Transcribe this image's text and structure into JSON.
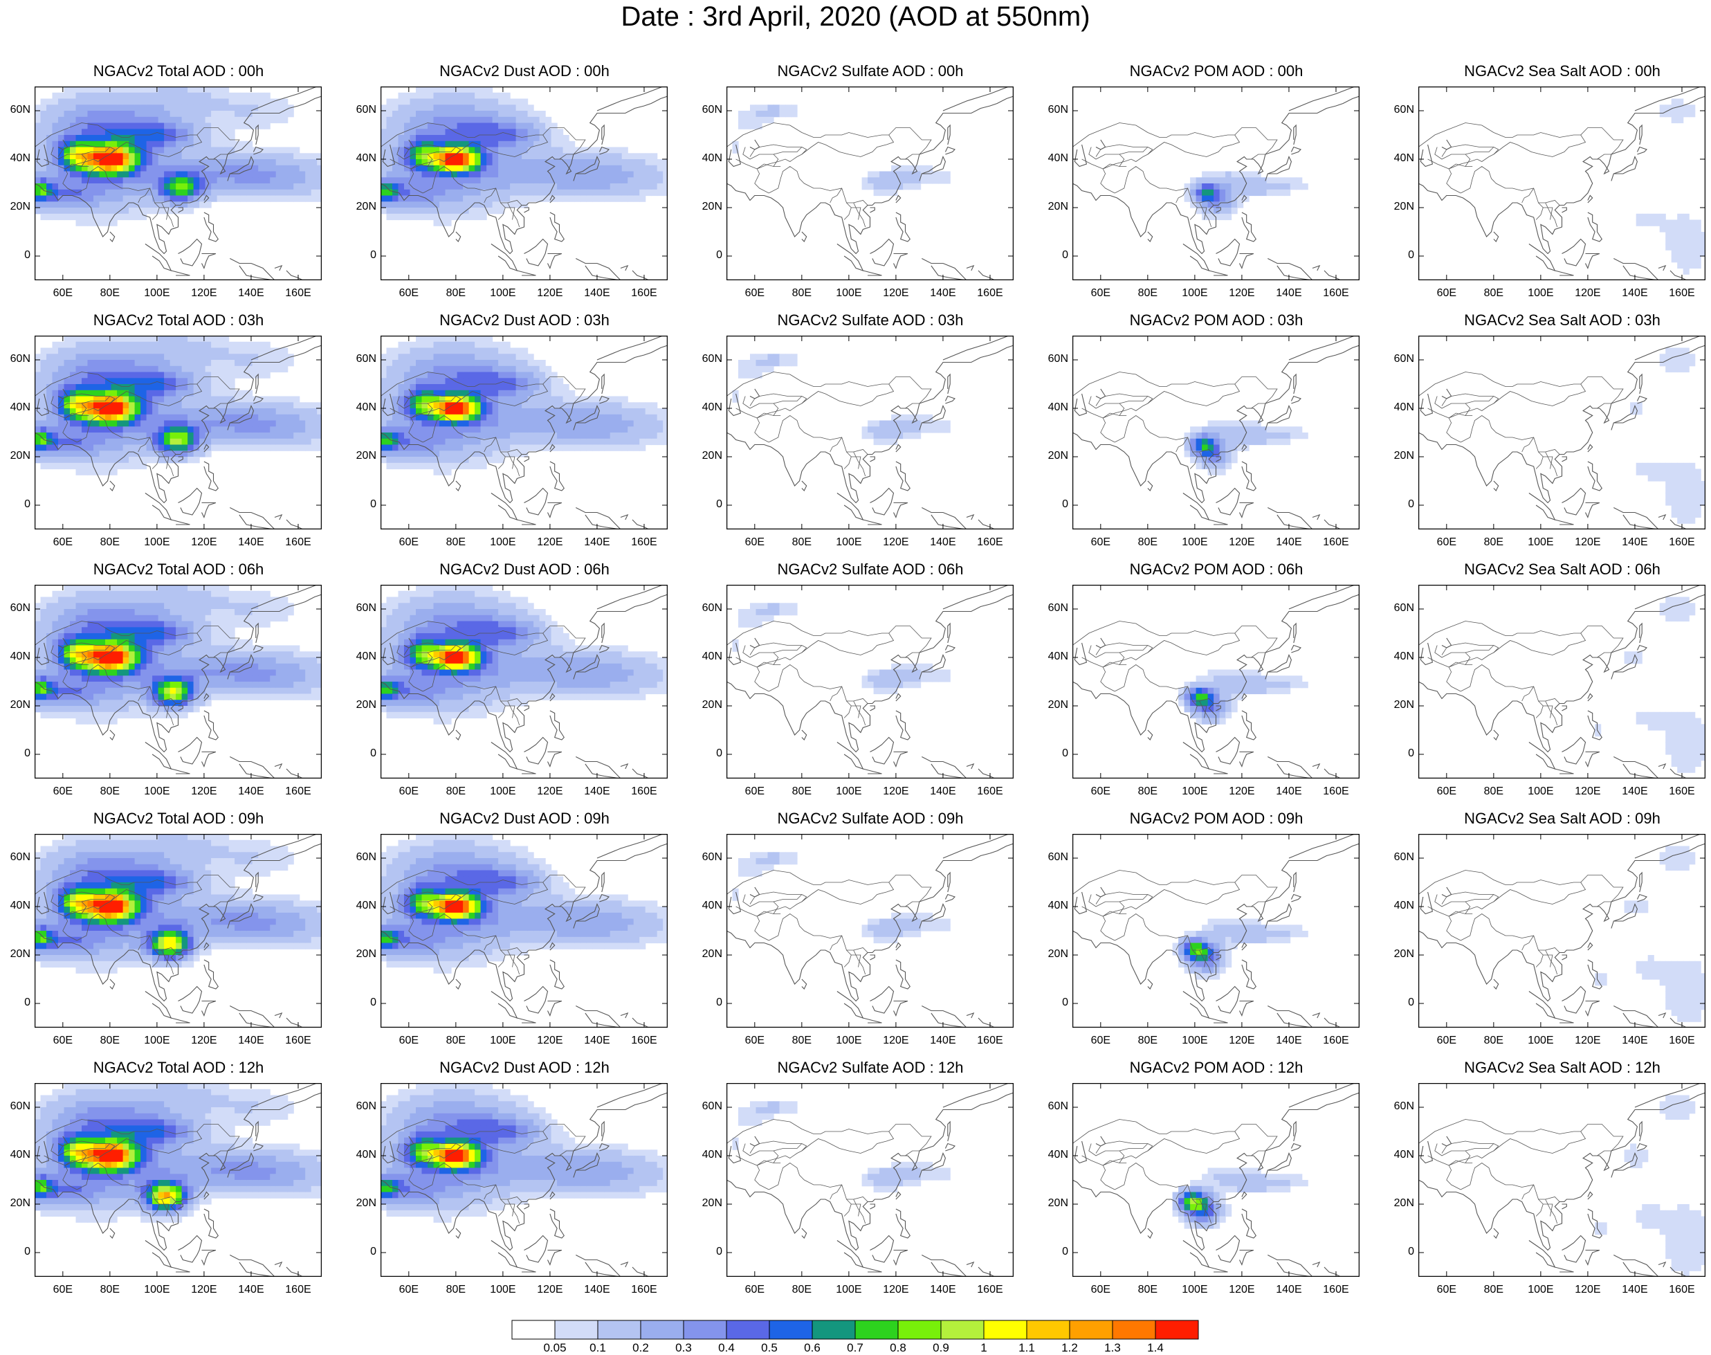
{
  "title": "Date : 3rd April, 2020 (AOD at 550nm)",
  "map": {
    "lon_range": [
      48,
      170
    ],
    "lat_range": [
      -10,
      70
    ],
    "x_ticks": [
      "60E",
      "80E",
      "100E",
      "120E",
      "140E",
      "160E"
    ],
    "y_ticks": [
      "60N",
      "40N",
      "20N",
      "0"
    ],
    "x_tick_values": [
      60,
      80,
      100,
      120,
      140,
      160
    ],
    "y_tick_values": [
      60,
      40,
      20,
      0
    ]
  },
  "grid": {
    "columns": [
      "Total",
      "Dust",
      "Sulfate",
      "POM",
      "Sea Salt"
    ],
    "rows": [
      "00h",
      "03h",
      "06h",
      "09h",
      "12h"
    ],
    "titles": [
      [
        "NGACv2 Total AOD : 00h",
        "NGACv2 Dust AOD : 00h",
        "NGACv2 Sulfate AOD : 00h",
        "NGACv2 POM AOD : 00h",
        "NGACv2 Sea Salt AOD : 00h"
      ],
      [
        "NGACv2 Total AOD : 03h",
        "NGACv2 Dust AOD : 03h",
        "NGACv2 Sulfate AOD : 03h",
        "NGACv2 POM AOD : 03h",
        "NGACv2 Sea Salt AOD : 03h"
      ],
      [
        "NGACv2 Total AOD : 06h",
        "NGACv2 Dust AOD : 06h",
        "NGACv2 Sulfate AOD : 06h",
        "NGACv2 POM AOD : 06h",
        "NGACv2 Sea Salt AOD : 06h"
      ],
      [
        "NGACv2 Total AOD : 09h",
        "NGACv2 Dust AOD : 09h",
        "NGACv2 Sulfate AOD : 09h",
        "NGACv2 POM AOD : 09h",
        "NGACv2 Sea Salt  AOD : 09h"
      ],
      [
        "NGACv2 Total AOD  : 12h",
        "NGACv2 Dust AOD : 12h",
        "NGACv2 Sulfate AOD : 12h",
        "NGACv2 POM  AOD : 12h",
        "NGACv2 Sea Salt  AOD : 12h"
      ]
    ]
  },
  "colorbar": {
    "colors": [
      "#ffffff",
      "#d2dcf8",
      "#b4c4f2",
      "#9aaeee",
      "#8494ec",
      "#5a68e6",
      "#1e64e6",
      "#14967e",
      "#2dd21e",
      "#78f00a",
      "#b4f03c",
      "#ffff00",
      "#ffc800",
      "#ffa000",
      "#ff7800",
      "#ff1e00"
    ],
    "labels": [
      "0.05",
      "0.1",
      "0.2",
      "0.3",
      "0.4",
      "0.5",
      "0.6",
      "0.7",
      "0.8",
      "0.9",
      "1",
      "1.1",
      "1.2",
      "1.3",
      "1.4"
    ]
  },
  "colors": {
    "coast": "#555555",
    "frame": "#000000"
  }
}
